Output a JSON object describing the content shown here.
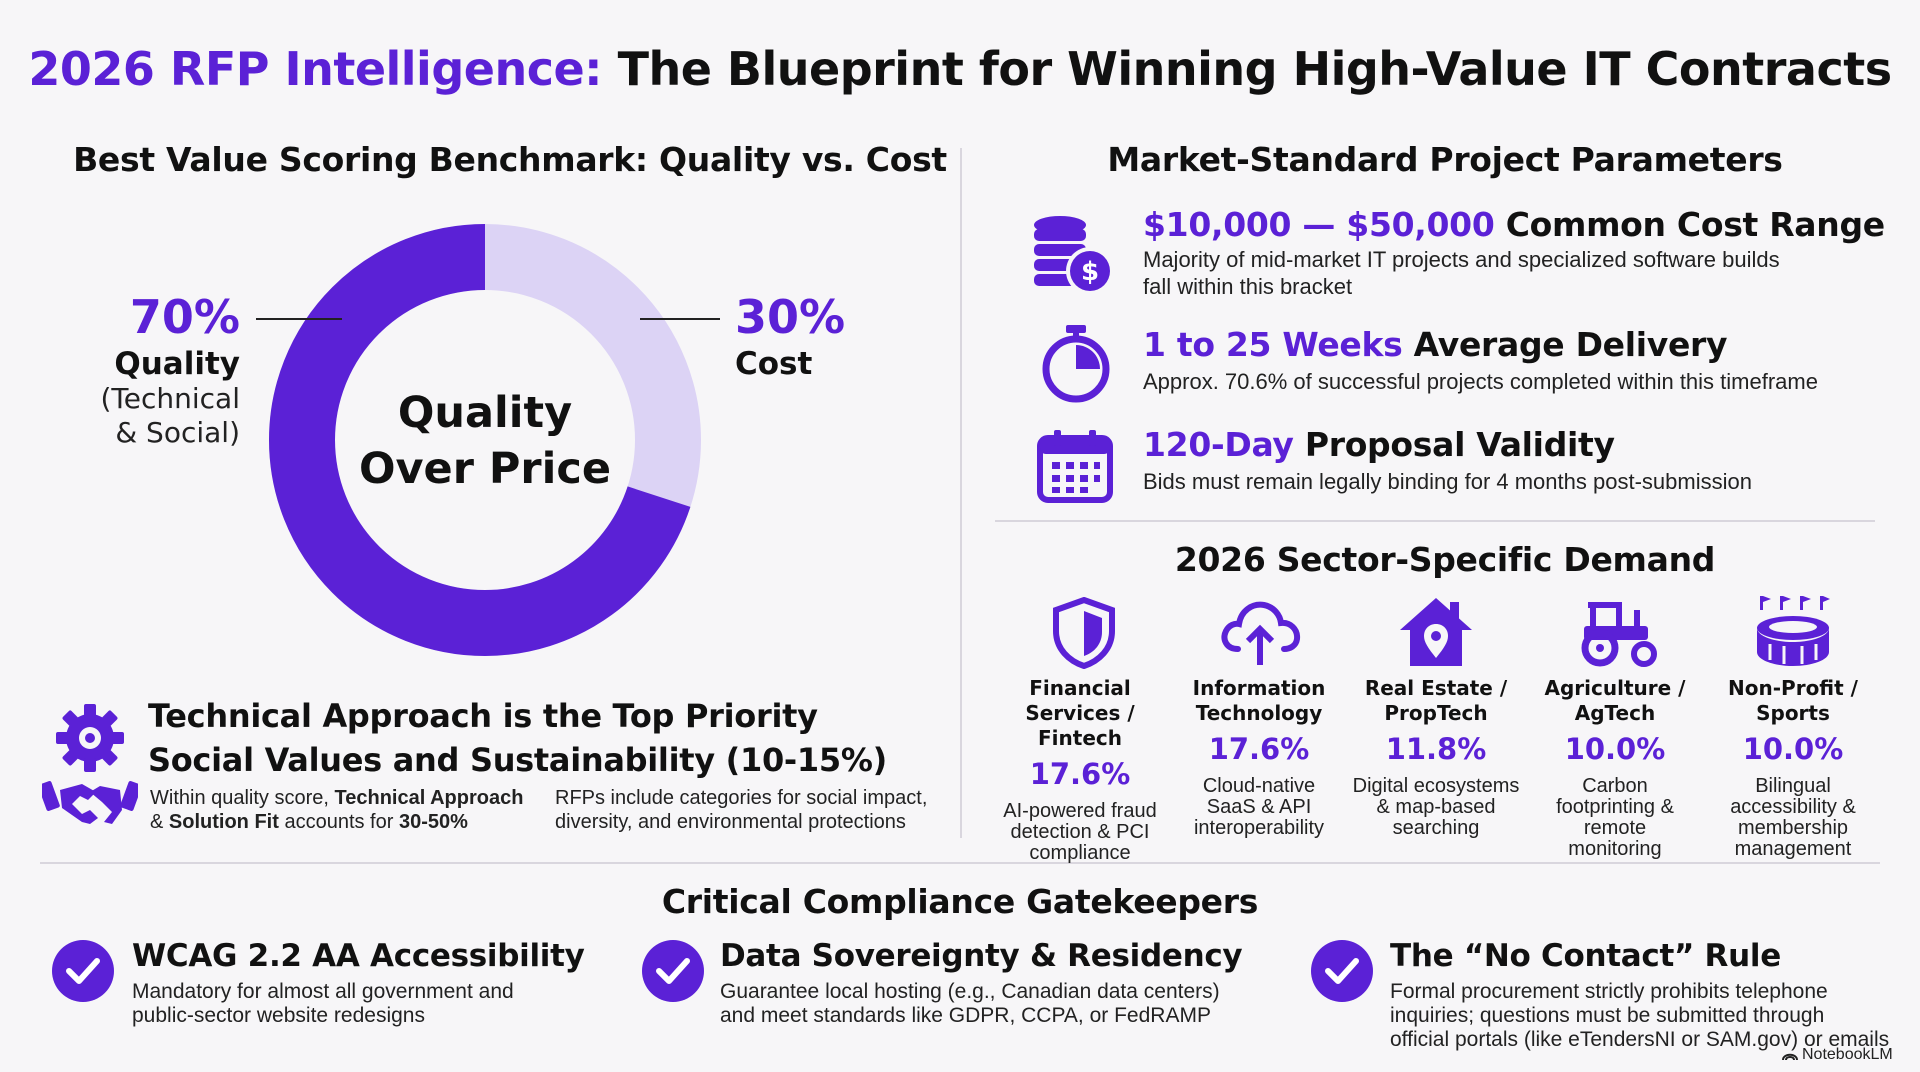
{
  "colors": {
    "accent": "#5b21d6",
    "accent_light": "#dcd3f5",
    "background": "#f7f6f8"
  },
  "title": {
    "highlight": "2026 RFP Intelligence:",
    "rest": "The Blueprint for Winning High-Value IT Contracts"
  },
  "scoring": {
    "heading": "Best Value Scoring Benchmark: Quality vs. Cost",
    "center_line1": "Quality",
    "center_line2": "Over Price",
    "quality": {
      "pct": "70%",
      "name": "Quality",
      "sub1": "(Technical",
      "sub2": "& Social)",
      "value": 70
    },
    "cost": {
      "pct": "30%",
      "name": "Cost",
      "value": 30
    }
  },
  "priority": {
    "heading1": "Technical Approach is the Top Priority",
    "heading2": "Social Values and Sustainability (10-15%)",
    "desc_left": {
      "p1": "Within quality score, ",
      "b1": "Technical Approach",
      "p2": "& ",
      "b2": "Solution Fit",
      "p3": " accounts for ",
      "b3": "30-50%"
    },
    "desc_right": {
      "line1": "RFPs include categories for social impact,",
      "line2": "diversity, and environmental protections"
    },
    "icons": [
      "gear-icon",
      "handshake-icon"
    ]
  },
  "parameters": {
    "heading": "Market-Standard Project Parameters",
    "items": [
      {
        "icon": "coins-dollar-icon",
        "highlight": "$10,000 — $50,000",
        "rest": " Common Cost Range",
        "line1": "Majority of mid-market IT projects and specialized software builds",
        "line2": "fall within this bracket"
      },
      {
        "icon": "stopwatch-icon",
        "highlight": "1 to 25 Weeks",
        "rest": " Average Delivery",
        "line1": "Approx. 70.6% of successful projects completed within this timeframe",
        "line2": ""
      },
      {
        "icon": "calendar-icon",
        "highlight": "120-Day",
        "rest": " Proposal Validity",
        "line1": "Bids must remain legally binding for 4 months post-submission",
        "line2": ""
      }
    ]
  },
  "sectors": {
    "heading": "2026 Sector-Specific Demand",
    "items": [
      {
        "icon": "shield-icon",
        "name1": "Financial",
        "name2": "Services / Fintech",
        "pct": "17.6%",
        "d1": "AI-powered fraud",
        "d2": "detection & PCI",
        "d3": "compliance",
        "d4": ""
      },
      {
        "icon": "cloud-upload-icon",
        "name1": "Information",
        "name2": "Technology",
        "pct": "17.6%",
        "d1": "Cloud-native",
        "d2": "SaaS & API",
        "d3": "interoperability",
        "d4": ""
      },
      {
        "icon": "house-pin-icon",
        "name1": "Real Estate /",
        "name2": "PropTech",
        "pct": "11.8%",
        "d1": "Digital ecosystems",
        "d2": "& map-based",
        "d3": "searching",
        "d4": ""
      },
      {
        "icon": "tractor-icon",
        "name1": "Agriculture /",
        "name2": "AgTech",
        "pct": "10.0%",
        "d1": "Carbon",
        "d2": "footprinting &",
        "d3": "remote",
        "d4": "monitoring"
      },
      {
        "icon": "stadium-icon",
        "name1": "Non-Profit /",
        "name2": "Sports",
        "pct": "10.0%",
        "d1": "Bilingual",
        "d2": "accessibility &",
        "d3": "membership",
        "d4": "management"
      }
    ]
  },
  "compliance": {
    "heading": "Critical Compliance Gatekeepers",
    "items": [
      {
        "icon": "check-circle-icon",
        "title": "WCAG 2.2 AA Accessibility",
        "l1": "Mandatory for almost all government and",
        "l2": "public-sector website redesigns",
        "l3": ""
      },
      {
        "icon": "check-circle-icon",
        "title": "Data Sovereignty & Residency",
        "l1": "Guarantee local hosting (e.g., Canadian data centers)",
        "l2": "and meet standards like GDPR, CCPA, or FedRAMP",
        "l3": ""
      },
      {
        "icon": "check-circle-icon",
        "title": "The “No Contact” Rule",
        "l1": "Formal procurement strictly prohibits telephone",
        "l2": "inquiries; questions must be submitted through",
        "l3": "official portals (like eTendersNI or SAM.gov) or emails"
      }
    ]
  },
  "watermark": "NotebookLM"
}
